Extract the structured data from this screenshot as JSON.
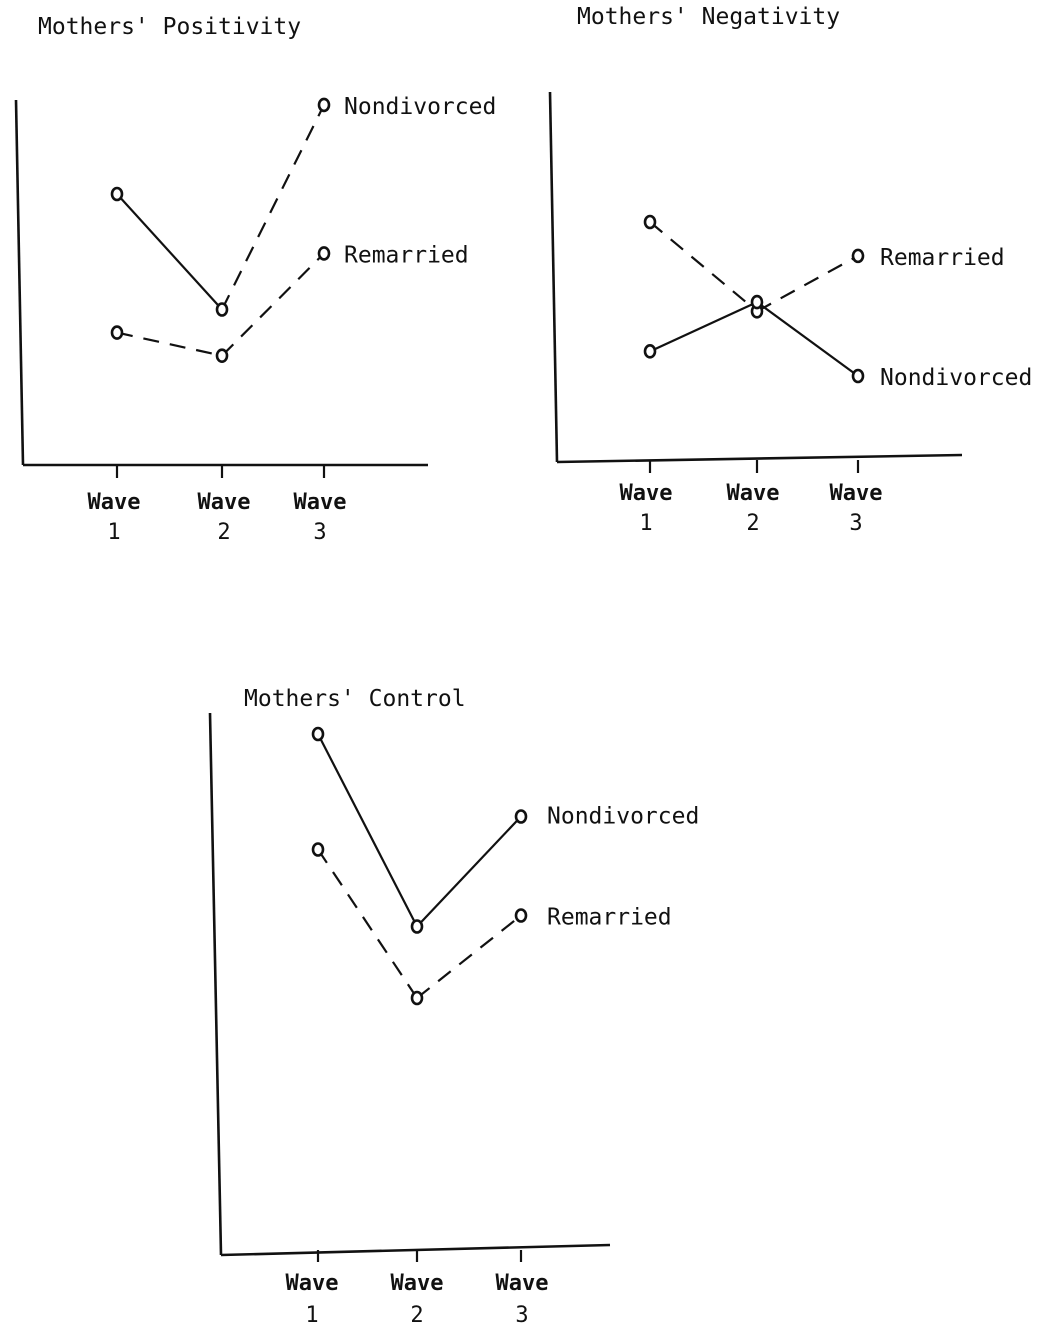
{
  "chart_data": [
    {
      "type": "line",
      "title": "Mothers' Positivity",
      "categories": [
        [
          "Wave",
          "1"
        ],
        [
          "Wave",
          "2"
        ],
        [
          "Wave",
          "3"
        ]
      ],
      "ylim": [
        0,
        100
      ],
      "grid": false,
      "series": [
        {
          "name": "Nondivorced",
          "line_style": "solid-dashed",
          "values": [
            80,
            45,
            107
          ]
        },
        {
          "name": "Remarried",
          "line_style": "dashed",
          "values": [
            38,
            31,
            62
          ]
        }
      ]
    },
    {
      "type": "line",
      "title": "Mothers' Negativity",
      "categories": [
        [
          "Wave",
          "1"
        ],
        [
          "Wave",
          "2"
        ],
        [
          "Wave",
          "3"
        ]
      ],
      "ylim": [
        0,
        100
      ],
      "grid": false,
      "series": [
        {
          "name": "Remarried",
          "line_style": "dashed",
          "values": [
            75,
            46,
            64
          ]
        },
        {
          "name": "Nondivorced",
          "line_style": "solid",
          "values": [
            33,
            49,
            25
          ]
        }
      ]
    },
    {
      "type": "line",
      "title": "Mothers' Control",
      "categories": [
        [
          "Wave",
          "1"
        ],
        [
          "Wave",
          "2"
        ],
        [
          "Wave",
          "3"
        ]
      ],
      "ylim": [
        0,
        100
      ],
      "grid": false,
      "series": [
        {
          "name": "Nondivorced",
          "line_style": "solid",
          "values": [
            92,
            57,
            77
          ]
        },
        {
          "name": "Remarried",
          "line_style": "dashed",
          "values": [
            71,
            44,
            59
          ]
        }
      ]
    }
  ]
}
